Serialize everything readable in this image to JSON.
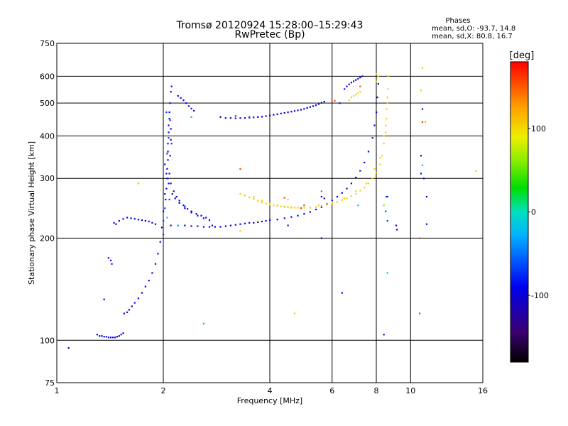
{
  "chart_data": {
    "type": "scatter",
    "title": "Tromsø 20120924 15:28:00–15:29:43",
    "subtitle": "RwPretec (Bp)",
    "xlabel": "Frequency [MHz]",
    "ylabel": "Stationary phase Virtual Height [km]",
    "x_scale": "log",
    "y_scale": "log",
    "xlim": [
      1,
      16
    ],
    "ylim": [
      75,
      750
    ],
    "x_ticks": [
      1,
      2,
      4,
      6,
      8,
      10,
      16
    ],
    "x_tick_labels": [
      "1",
      "2",
      "4",
      "6",
      "8",
      "10",
      "16"
    ],
    "y_ticks": [
      75,
      100,
      200,
      300,
      400,
      500,
      600,
      750
    ],
    "y_tick_labels": [
      "75",
      "100",
      "200",
      "300",
      "400",
      "500",
      "600",
      "750"
    ],
    "grid": true,
    "stats": {
      "heading": "Phases",
      "line_o": "mean, sd,O: -93.7, 14.8",
      "line_x": "mean, sd,X:  80.8, 16.7"
    },
    "colorbar": {
      "label": "[deg]",
      "range": [
        -180,
        180
      ],
      "ticks": [
        100,
        0,
        -100
      ],
      "tick_labels": [
        "100",
        "0",
        "-100"
      ]
    },
    "series": [
      {
        "phase": -95,
        "points": [
          [
            1.08,
            95
          ],
          [
            1.3,
            104
          ],
          [
            1.32,
            103
          ],
          [
            1.34,
            103
          ],
          [
            1.36,
            102.5
          ],
          [
            1.38,
            102.5
          ],
          [
            1.4,
            102
          ],
          [
            1.42,
            102
          ],
          [
            1.44,
            102
          ],
          [
            1.46,
            102
          ],
          [
            1.48,
            102.5
          ],
          [
            1.5,
            103
          ],
          [
            1.52,
            104
          ],
          [
            1.54,
            105
          ],
          [
            1.36,
            132
          ],
          [
            1.4,
            175
          ],
          [
            1.42,
            172
          ],
          [
            1.43,
            168
          ],
          [
            1.55,
            120
          ],
          [
            1.58,
            121
          ],
          [
            1.6,
            123
          ],
          [
            1.63,
            126
          ],
          [
            1.66,
            129
          ],
          [
            1.7,
            133
          ],
          [
            1.74,
            138
          ],
          [
            1.78,
            144
          ],
          [
            1.82,
            150
          ],
          [
            1.86,
            158
          ],
          [
            1.9,
            168
          ],
          [
            1.93,
            180
          ],
          [
            1.96,
            195
          ],
          [
            1.98,
            215
          ],
          [
            2.0,
            240
          ],
          [
            2.02,
            270
          ],
          [
            2.04,
            310
          ],
          [
            2.06,
            360
          ],
          [
            2.07,
            410
          ],
          [
            2.08,
            450
          ],
          [
            2.09,
            500
          ],
          [
            2.1,
            540
          ],
          [
            2.11,
            560
          ],
          [
            2.05,
            300
          ],
          [
            2.05,
            320
          ],
          [
            2.06,
            340
          ],
          [
            2.04,
            280
          ],
          [
            2.06,
            380
          ],
          [
            2.07,
            430
          ],
          [
            2.08,
            470
          ],
          [
            2.03,
            260
          ],
          [
            2.09,
            350
          ],
          [
            2.1,
            390
          ],
          [
            2.02,
            330
          ],
          [
            2.07,
            290
          ],
          [
            2.08,
            310
          ],
          [
            2.1,
            420
          ],
          [
            1.45,
            222
          ],
          [
            1.47,
            220
          ],
          [
            1.5,
            225
          ],
          [
            1.54,
            228
          ],
          [
            1.58,
            230
          ],
          [
            1.62,
            229
          ],
          [
            1.66,
            228
          ],
          [
            1.7,
            227
          ],
          [
            1.74,
            226
          ],
          [
            1.78,
            225
          ],
          [
            1.82,
            224
          ],
          [
            1.86,
            222
          ],
          [
            1.9,
            220
          ],
          [
            2.1,
            290
          ],
          [
            2.14,
            275
          ],
          [
            2.18,
            265
          ],
          [
            2.22,
            258
          ],
          [
            2.28,
            250
          ],
          [
            2.34,
            244
          ],
          [
            2.4,
            240
          ],
          [
            2.48,
            236
          ],
          [
            2.56,
            233
          ],
          [
            2.64,
            230
          ],
          [
            2.12,
            270
          ],
          [
            2.16,
            262
          ],
          [
            2.22,
            254
          ],
          [
            2.3,
            245
          ],
          [
            2.4,
            238
          ],
          [
            2.5,
            233
          ],
          [
            2.6,
            229
          ],
          [
            2.7,
            226
          ],
          [
            2.1,
            218
          ],
          [
            2.2,
            218
          ],
          [
            2.3,
            218
          ],
          [
            2.4,
            217
          ],
          [
            2.5,
            217
          ],
          [
            2.6,
            216
          ],
          [
            2.7,
            216
          ],
          [
            2.8,
            216
          ],
          [
            2.9,
            216
          ],
          [
            3.0,
            217
          ],
          [
            3.1,
            218
          ],
          [
            3.2,
            219
          ],
          [
            3.3,
            220
          ],
          [
            3.4,
            221
          ],
          [
            3.5,
            222
          ],
          [
            3.6,
            222
          ],
          [
            3.7,
            223
          ],
          [
            3.8,
            224
          ],
          [
            3.9,
            225
          ],
          [
            4.0,
            226
          ],
          [
            4.2,
            227
          ],
          [
            4.4,
            229
          ],
          [
            4.6,
            231
          ],
          [
            4.8,
            233
          ],
          [
            5.0,
            236
          ],
          [
            5.2,
            239
          ],
          [
            5.4,
            243
          ],
          [
            5.6,
            247
          ],
          [
            5.8,
            252
          ],
          [
            6.0,
            258
          ],
          [
            6.2,
            265
          ],
          [
            6.4,
            272
          ],
          [
            6.6,
            280
          ],
          [
            6.8,
            290
          ],
          [
            7.0,
            302
          ],
          [
            7.2,
            316
          ],
          [
            7.4,
            334
          ],
          [
            7.6,
            360
          ],
          [
            7.8,
            395
          ],
          [
            7.9,
            430
          ],
          [
            8.0,
            470
          ],
          [
            8.05,
            520
          ],
          [
            8.1,
            570
          ],
          [
            2.2,
            525
          ],
          [
            2.24,
            518
          ],
          [
            2.28,
            510
          ],
          [
            2.32,
            500
          ],
          [
            2.36,
            490
          ],
          [
            2.4,
            482
          ],
          [
            2.44,
            475
          ],
          [
            2.9,
            455
          ],
          [
            3.0,
            452
          ],
          [
            3.1,
            452
          ],
          [
            3.2,
            451
          ],
          [
            3.3,
            452
          ],
          [
            3.4,
            452
          ],
          [
            3.5,
            453
          ],
          [
            3.6,
            454
          ],
          [
            3.7,
            455
          ],
          [
            3.8,
            456
          ],
          [
            3.9,
            458
          ],
          [
            4.0,
            460
          ],
          [
            4.1,
            462
          ],
          [
            4.2,
            464
          ],
          [
            4.3,
            466
          ],
          [
            4.4,
            468
          ],
          [
            4.5,
            470
          ],
          [
            4.6,
            472
          ],
          [
            4.7,
            474
          ],
          [
            4.8,
            476
          ],
          [
            4.9,
            478
          ],
          [
            5.0,
            481
          ],
          [
            5.1,
            484
          ],
          [
            5.2,
            487
          ],
          [
            5.3,
            490
          ],
          [
            5.4,
            493
          ],
          [
            5.5,
            497
          ],
          [
            5.6,
            501
          ],
          [
            5.7,
            505
          ],
          [
            6.5,
            550
          ],
          [
            6.6,
            560
          ],
          [
            6.7,
            568
          ],
          [
            6.8,
            575
          ],
          [
            6.9,
            580
          ],
          [
            7.0,
            585
          ],
          [
            7.1,
            590
          ],
          [
            7.2,
            595
          ],
          [
            7.3,
            600
          ],
          [
            5.6,
            265
          ],
          [
            5.7,
            262
          ],
          [
            6.3,
            500
          ],
          [
            6.4,
            138
          ],
          [
            8.4,
            104
          ],
          [
            8.55,
            265
          ],
          [
            9.1,
            218
          ],
          [
            9.15,
            212
          ],
          [
            10.7,
            350
          ],
          [
            10.7,
            310
          ],
          [
            10.8,
            480
          ],
          [
            10.9,
            300
          ],
          [
            11.1,
            265
          ],
          [
            11.1,
            220
          ],
          [
            4.5,
            218
          ],
          [
            2.75,
            218
          ],
          [
            5.6,
            200
          ]
        ]
      },
      {
        "phase": -70,
        "points": [
          [
            2.0,
            225
          ],
          [
            2.02,
            245
          ],
          [
            2.05,
            355
          ],
          [
            2.07,
            395
          ],
          [
            2.09,
            445
          ],
          [
            2.04,
            470
          ],
          [
            2.11,
            380
          ],
          [
            2.08,
            260
          ],
          [
            2.06,
            300
          ],
          [
            8.6,
            225
          ],
          [
            8.5,
            240
          ],
          [
            8.6,
            265
          ],
          [
            3.2,
            458
          ],
          [
            3.5,
            455
          ],
          [
            2.0,
            205
          ],
          [
            2.3,
            248
          ]
        ]
      },
      {
        "phase": -20,
        "points": [
          [
            2.05,
            230
          ],
          [
            2.4,
            455
          ],
          [
            2.2,
            218
          ],
          [
            8.6,
            158
          ],
          [
            7.1,
            250
          ],
          [
            2.6,
            112
          ],
          [
            10.8,
            328
          ]
        ]
      },
      {
        "phase": 105,
        "points": [
          [
            3.3,
            270
          ],
          [
            3.4,
            267
          ],
          [
            3.5,
            264
          ],
          [
            3.6,
            261
          ],
          [
            3.7,
            258
          ],
          [
            3.8,
            255
          ],
          [
            3.9,
            253
          ],
          [
            4.0,
            251
          ],
          [
            4.1,
            250
          ],
          [
            4.2,
            249
          ],
          [
            4.3,
            248
          ],
          [
            4.4,
            247
          ],
          [
            4.5,
            247
          ],
          [
            4.6,
            246
          ],
          [
            4.7,
            246
          ],
          [
            4.8,
            246
          ],
          [
            4.9,
            246
          ],
          [
            5.0,
            246
          ],
          [
            5.2,
            246
          ],
          [
            5.4,
            247
          ],
          [
            5.6,
            249
          ],
          [
            5.8,
            251
          ],
          [
            6.0,
            253
          ],
          [
            6.2,
            256
          ],
          [
            6.4,
            259
          ],
          [
            6.6,
            262
          ],
          [
            6.8,
            266
          ],
          [
            7.0,
            270
          ],
          [
            7.2,
            276
          ],
          [
            7.4,
            282
          ],
          [
            7.6,
            290
          ],
          [
            7.8,
            300
          ],
          [
            8.0,
            312
          ],
          [
            8.2,
            330
          ],
          [
            8.3,
            350
          ],
          [
            8.4,
            380
          ],
          [
            8.5,
            410
          ],
          [
            8.55,
            450
          ],
          [
            8.6,
            500
          ],
          [
            8.62,
            550
          ],
          [
            8.65,
            600
          ],
          [
            3.6,
            265
          ],
          [
            3.8,
            258
          ],
          [
            4.0,
            253
          ],
          [
            4.2,
            250
          ],
          [
            4.4,
            248
          ],
          [
            4.6,
            247
          ],
          [
            5.5,
            250
          ],
          [
            6.0,
            256
          ],
          [
            6.5,
            262
          ],
          [
            7.0,
            275
          ],
          [
            7.5,
            290
          ],
          [
            7.9,
            320
          ],
          [
            8.2,
            345
          ],
          [
            8.4,
            400
          ],
          [
            8.5,
            430
          ],
          [
            8.55,
            480
          ],
          [
            8.6,
            520
          ],
          [
            6.7,
            510
          ],
          [
            6.8,
            520
          ],
          [
            6.9,
            525
          ],
          [
            7.0,
            530
          ],
          [
            7.1,
            535
          ],
          [
            7.2,
            540
          ],
          [
            8.0,
            610
          ],
          [
            8.1,
            600
          ],
          [
            8.0,
            580
          ],
          [
            10.7,
            545
          ],
          [
            10.8,
            635
          ],
          [
            15.3,
            315
          ],
          [
            4.7,
            120
          ],
          [
            4.5,
            260
          ],
          [
            3.3,
            210
          ]
        ]
      },
      {
        "phase": 160,
        "points": [
          [
            4.4,
            263
          ],
          [
            5.0,
            250
          ],
          [
            5.6,
            275
          ],
          [
            6.1,
            508
          ],
          [
            10.6,
            120
          ],
          [
            7.2,
            560
          ],
          [
            4.9,
            245
          ],
          [
            10.6,
            200
          ],
          [
            10.8,
            440
          ],
          [
            3.3,
            320
          ]
        ]
      },
      {
        "phase": 60,
        "points": [
          [
            1.7,
            290
          ],
          [
            11.0,
            440
          ],
          [
            8.4,
            250
          ]
        ]
      }
    ]
  }
}
